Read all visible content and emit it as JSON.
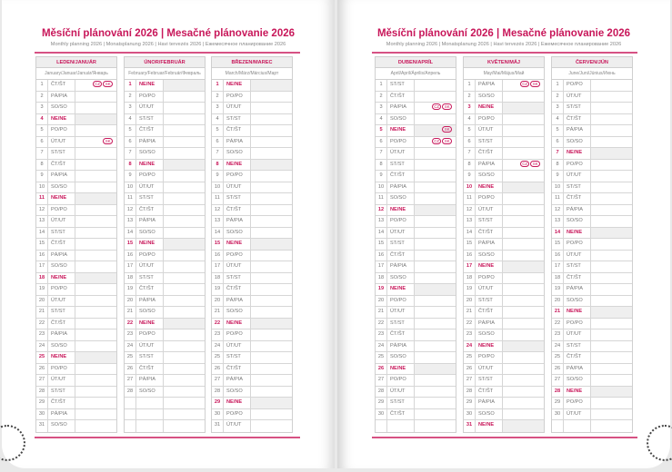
{
  "title": "Měsíční plánování 2026 | Mesačné plánovanie 2026",
  "subtitle": "Monthly planning 2026 | Monatsplanung 2026 | Havi tervezés 2026 | Ежемесячное планирование 2026",
  "colors": {
    "accent": "#c8175a",
    "sunday_bg": "#efefef"
  },
  "months": [
    {
      "name": "LEDEN/JANUÁR",
      "sub": "January/Januar/Január/Январь",
      "first": 3,
      "len": 31,
      "badges": {
        "1": [
          "CZ",
          "SK"
        ],
        "6": [
          "SK"
        ]
      }
    },
    {
      "name": "ÚNOR/FEBRUÁR",
      "sub": "February/Februar/Február/Февраль",
      "first": 6,
      "len": 28,
      "badges": {}
    },
    {
      "name": "BŘEZEN/MAREC",
      "sub": "March/März/Március/Март",
      "first": 6,
      "len": 31,
      "badges": {}
    },
    {
      "name": "DUBEN/APRÍL",
      "sub": "April/April/Április/Апрель",
      "first": 2,
      "len": 30,
      "badges": {
        "3": [
          "CZ",
          "SK"
        ],
        "5": [
          "SK"
        ],
        "6": [
          "CZ",
          "SK"
        ]
      }
    },
    {
      "name": "KVĚTEN/MÁJ",
      "sub": "May/Mai/Május/Май",
      "first": 4,
      "len": 31,
      "badges": {
        "1": [
          "CZ",
          "SK"
        ],
        "8": [
          "CZ",
          "SK"
        ]
      }
    },
    {
      "name": "ČERVEN/JÚN",
      "sub": "June/Juni/Június/Июнь",
      "first": 0,
      "len": 30,
      "badges": {}
    }
  ],
  "weekdays": [
    "PO/PO",
    "ÚT/UT",
    "ST/ST",
    "ČT/ŠT",
    "PÁ/PIA",
    "SO/SO",
    "NE/NE"
  ]
}
